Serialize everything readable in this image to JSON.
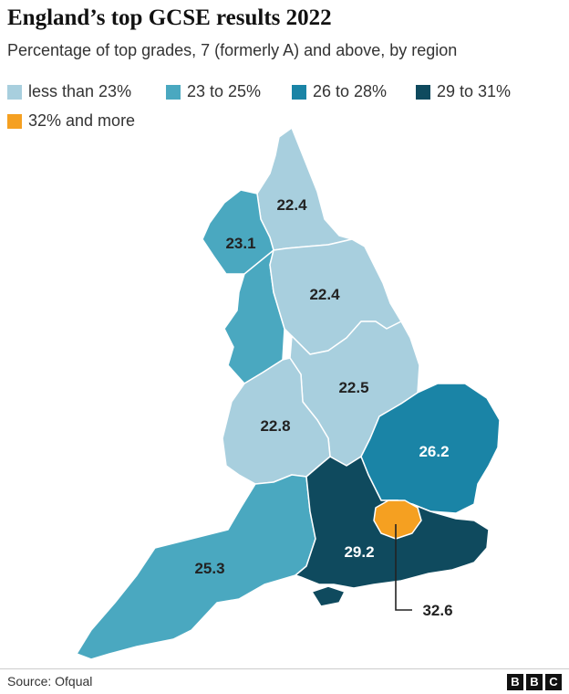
{
  "title": "England’s top GCSE results 2022",
  "subtitle": "Percentage of top grades, 7 (formerly A) and above, by region",
  "legend": [
    {
      "label": "less than 23%",
      "color": "#a8cfde"
    },
    {
      "label": "23 to 25%",
      "color": "#4aa8c0"
    },
    {
      "label": "26 to 28%",
      "color": "#1a84a6"
    },
    {
      "label": "29 to 31%",
      "color": "#0f4a5e"
    },
    {
      "label": "32% and more",
      "color": "#f5a021"
    }
  ],
  "regions": [
    {
      "value": "22.4",
      "color": "#a8cfde"
    },
    {
      "value": "23.1",
      "color": "#4aa8c0"
    },
    {
      "value": "22.4",
      "color": "#a8cfde"
    },
    {
      "value": "22.5",
      "color": "#a8cfde"
    },
    {
      "value": "22.8",
      "color": "#a8cfde"
    },
    {
      "value": "26.2",
      "color": "#1a84a6"
    },
    {
      "value": "25.3",
      "color": "#4aa8c0"
    },
    {
      "value": "29.2",
      "color": "#0f4a5e"
    },
    {
      "value": "32.6",
      "color": "#f5a021"
    }
  ],
  "source": "Source: Ofqual",
  "logo": [
    "B",
    "B",
    "C"
  ]
}
